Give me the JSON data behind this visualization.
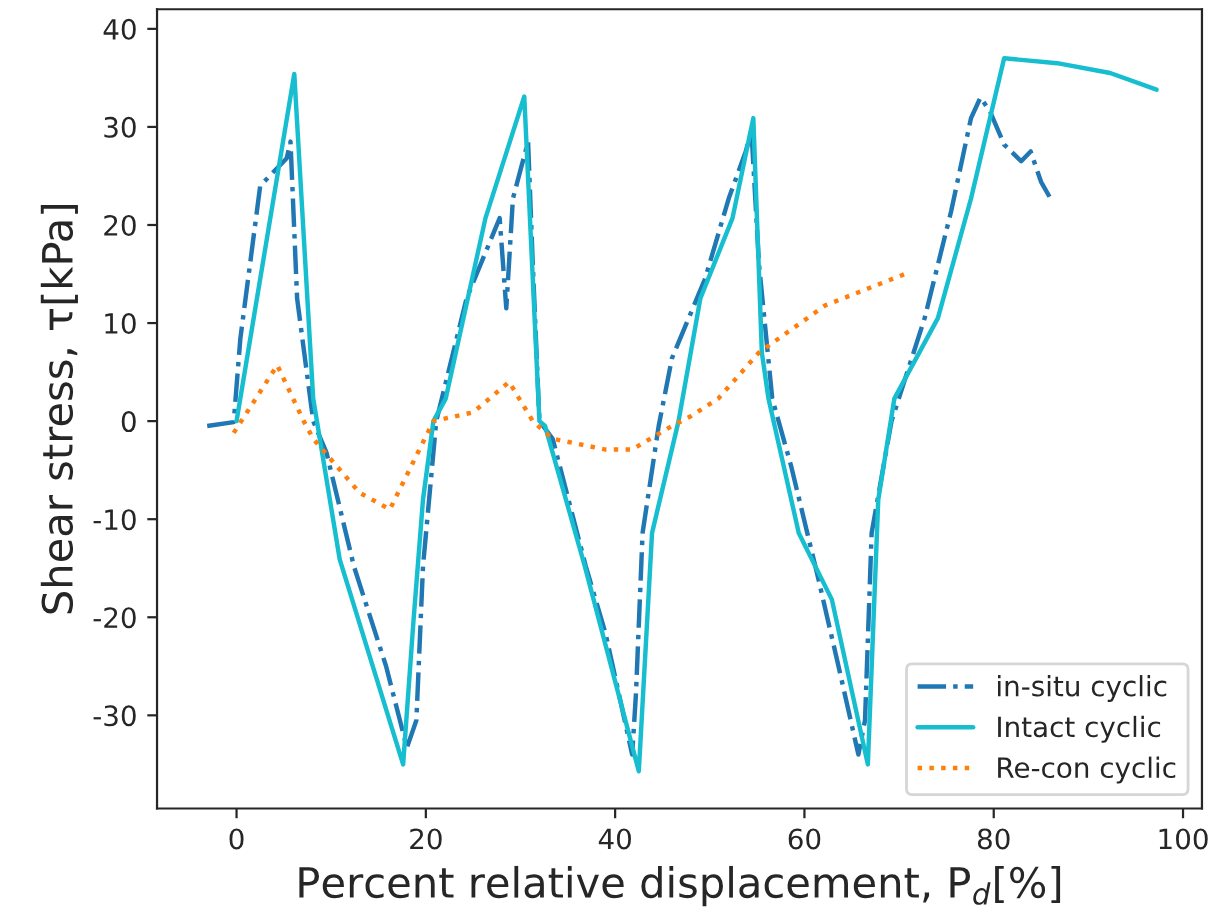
{
  "chart_data": {
    "type": "line",
    "xlabel": "Percent relative displacement, P$_{d}$[%]",
    "ylabel": "Shear stress, τ[kPa]",
    "xlim": [
      -8.4,
      102
    ],
    "ylim": [
      -39.5,
      42
    ],
    "xticks": [
      0,
      20,
      40,
      60,
      80,
      100
    ],
    "yticks": [
      -30,
      -20,
      -10,
      0,
      10,
      20,
      30,
      40
    ],
    "grid": false,
    "legend": "bottom right",
    "series": [
      {
        "name": "in-situ cyclic",
        "color": "#1f77b4",
        "line_style": "dashdot",
        "x": [
          -3.1,
          -0.3,
          0.4,
          2.5,
          5.3,
          5.7,
          6.4,
          8.1,
          9.5,
          12.4,
          15.8,
          18,
          19,
          19.7,
          21.1,
          24.3,
          27.8,
          28.5,
          29.2,
          30.8,
          31.3,
          32,
          33.4,
          36.9,
          39,
          41.8,
          42.2,
          42.9,
          44.6,
          46,
          49.5,
          52,
          53.8,
          54.4,
          55.2,
          56.6,
          58.6,
          61.5,
          63.6,
          65.7,
          66.4,
          67.1,
          69.2,
          72.7,
          75.5,
          77.6,
          78.6,
          79.6,
          81.1,
          82.9,
          83.9,
          85,
          86
        ],
        "values": [
          -0.5,
          -0.1,
          8.4,
          24,
          26.8,
          28.5,
          12.5,
          0,
          -3.2,
          -14.8,
          -25,
          -33.3,
          -30.5,
          -14.8,
          0,
          12.5,
          20.7,
          11.5,
          22.7,
          28.5,
          16,
          0,
          -1.8,
          -14.8,
          -21.7,
          -34,
          -27.8,
          -11.4,
          -0.5,
          6.4,
          14.5,
          22.7,
          27.5,
          29.6,
          16,
          2.3,
          -4.6,
          -16.2,
          -25,
          -34,
          -30.5,
          -11.4,
          0,
          10.5,
          21.4,
          30.9,
          33,
          31.6,
          28.2,
          26.5,
          27.5,
          24.4,
          22.7
        ]
      },
      {
        "name": "Intact cyclic",
        "color": "#17becf",
        "line_style": "solid",
        "x": [
          0,
          6.1,
          8.1,
          10.9,
          17.6,
          18.7,
          19.7,
          20.8,
          22.1,
          26.3,
          30.4,
          32,
          32.6,
          36.8,
          42.5,
          43.9,
          46.7,
          49,
          52.4,
          54.6,
          55.5,
          56.2,
          59.4,
          62.9,
          66.7,
          67.8,
          69.5,
          74.1,
          77.6,
          81.1,
          86.7,
          92.3,
          97.2
        ],
        "values": [
          0,
          35.4,
          2.3,
          -14.1,
          -35,
          -20.3,
          -8,
          0,
          2.3,
          20.7,
          33.1,
          0,
          -0.5,
          -14.8,
          -35.7,
          -11.4,
          0,
          12.5,
          20.7,
          30.9,
          7,
          2.3,
          -11.4,
          -18.2,
          -35,
          -8,
          2.3,
          10.5,
          22.7,
          37,
          36.5,
          35.5,
          33.8
        ]
      },
      {
        "name": "Re-con cyclic",
        "color": "#ff7f0e",
        "line_style": "dotted",
        "x": [
          -0.3,
          1.1,
          4.3,
          7.1,
          8.1,
          13,
          16.2,
          20.8,
          25,
          28.8,
          31.3,
          33.4,
          39,
          41.8,
          46,
          48,
          50.9,
          55.2,
          62.2,
          70.6
        ],
        "values": [
          -1.2,
          0.9,
          5.7,
          0,
          -1.8,
          -7.3,
          -9,
          0,
          0.9,
          4,
          0,
          -1.8,
          -2.9,
          -2.9,
          -0.5,
          0.5,
          2.3,
          7,
          11.8,
          15
        ]
      }
    ]
  }
}
